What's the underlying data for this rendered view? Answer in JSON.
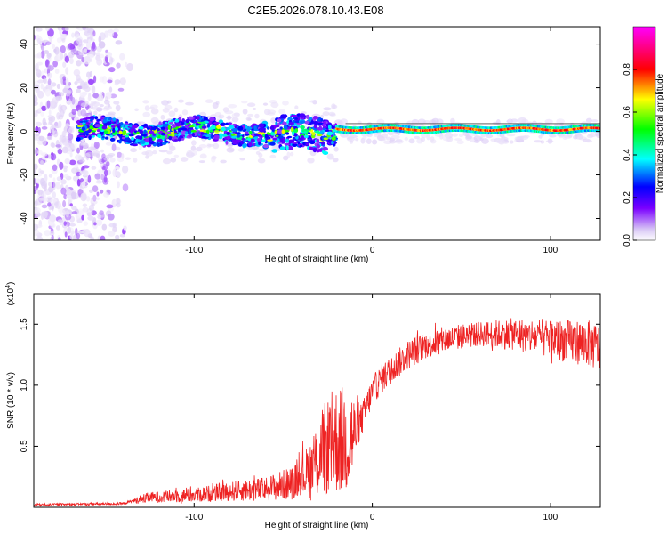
{
  "title": "C2E5.2026.078.10.43.E08",
  "chart_data": [
    {
      "type": "heatmap",
      "name": "spectrogram",
      "xlabel": "Height of straight line (km)",
      "ylabel": "Frequency (Hz)",
      "xlim": [
        -190,
        128
      ],
      "ylim": [
        -50,
        48
      ],
      "xticks": [
        -100,
        0,
        100
      ],
      "yticks": [
        -40,
        -20,
        0,
        20,
        40
      ],
      "xtick_labels": [
        "-100",
        "0",
        "100"
      ],
      "ytick_labels": [
        "-40",
        "-20",
        "0",
        "20",
        "40"
      ],
      "colorbar": {
        "label": "Normalized spectral amplitude",
        "range": [
          0,
          1
        ],
        "ticks": [
          0.0,
          0.2,
          0.4,
          0.6,
          0.8
        ],
        "tick_labels": [
          "0.0",
          "0.2",
          "0.4",
          "0.6",
          "0.8"
        ],
        "colormap": [
          "#ffffff",
          "#d9c8f5",
          "#7a00ff",
          "#0000ff",
          "#00ffff",
          "#00ff00",
          "#ffff00",
          "#ff0000",
          "#ff0080",
          "#ff00ff"
        ]
      },
      "features": [
        {
          "region": "noise",
          "x_range": [
            -190,
            -135
          ],
          "freq_range": [
            -50,
            48
          ],
          "amplitude": 0.1
        },
        {
          "region": "turbulent-band",
          "x_range": [
            -165,
            -20
          ],
          "center_freq": 0,
          "bandwidth": 8,
          "amplitude": 0.45
        },
        {
          "region": "stable-line",
          "x_range": [
            -20,
            128
          ],
          "center_freq": 1,
          "bandwidth": 3,
          "amplitude": 0.75
        }
      ]
    },
    {
      "type": "line",
      "name": "snr",
      "xlabel": "Height of straight line (km)",
      "ylabel": "SNR (10 * v/v)",
      "y_multiplier_label": "(x10",
      "y_multiplier_exp": "4",
      "xlim": [
        -190,
        128
      ],
      "ylim": [
        0,
        1.75
      ],
      "xticks": [
        -100,
        0,
        100
      ],
      "yticks": [
        0.5,
        1.0,
        1.5
      ],
      "xtick_labels": [
        "-100",
        "0",
        "100"
      ],
      "ytick_labels": [
        "0.5",
        "1.0",
        "1.5"
      ],
      "color": "#ee2222",
      "envelope": {
        "x": [
          -190,
          -140,
          -135,
          -125,
          -100,
          -80,
          -60,
          -45,
          -35,
          -28,
          -22,
          -15,
          -10,
          -5,
          0,
          5,
          10,
          20,
          30,
          40,
          50,
          60,
          70,
          80,
          90,
          100,
          110,
          120,
          128
        ],
        "y": [
          0.02,
          0.03,
          0.05,
          0.08,
          0.1,
          0.13,
          0.15,
          0.2,
          0.3,
          0.45,
          0.55,
          0.55,
          0.6,
          0.75,
          0.95,
          1.05,
          1.12,
          1.25,
          1.33,
          1.37,
          1.4,
          1.42,
          1.42,
          1.42,
          1.4,
          1.38,
          1.36,
          1.35,
          1.3
        ]
      },
      "noise_amplitude": {
        "x": [
          -190,
          -135,
          -130,
          -100,
          -60,
          -40,
          -30,
          -20,
          -12,
          -8,
          0,
          20,
          60,
          90,
          128
        ],
        "a": [
          0.01,
          0.01,
          0.04,
          0.06,
          0.1,
          0.15,
          0.35,
          0.45,
          0.45,
          0.15,
          0.12,
          0.12,
          0.1,
          0.15,
          0.2
        ]
      }
    }
  ]
}
